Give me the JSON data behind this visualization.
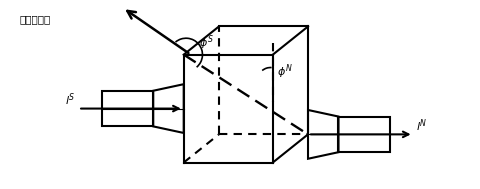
{
  "label_solar": "太阳光矢量",
  "label_phi_s": "$\\phi^S$",
  "label_phi_n": "$\\phi^N$",
  "label_l_s": "$l^S$",
  "label_l_n": "$l^N$",
  "background": "#ffffff",
  "line_color": "#000000"
}
